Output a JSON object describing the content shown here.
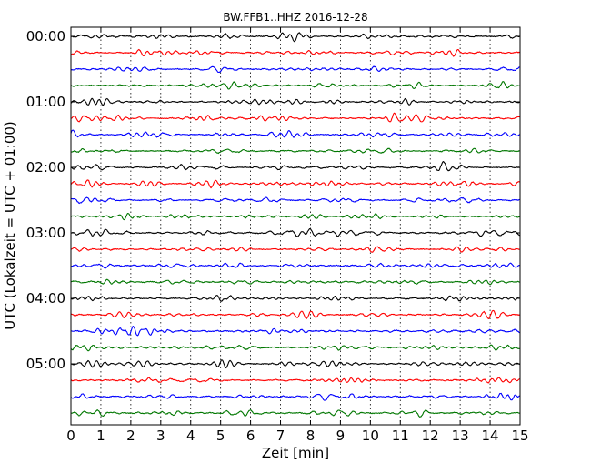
{
  "chart_data": {
    "type": "line",
    "title": "BW.FFB1..HHZ 2016-12-28",
    "xlabel": "Zeit  [min]",
    "ylabel": "UTC (Lokalzeit = UTC + 01:00)",
    "xlim": [
      0,
      15
    ],
    "xticks": [
      "0",
      "1",
      "2",
      "3",
      "4",
      "5",
      "6",
      "7",
      "8",
      "9",
      "10",
      "11",
      "12",
      "13",
      "14",
      "15"
    ],
    "yticks": [
      "00:00",
      "01:00",
      "02:00",
      "03:00",
      "04:00",
      "05:00"
    ],
    "trace_interval_minutes": 15,
    "trace_count": 24,
    "trace_colors": [
      "#000000",
      "#ff0000",
      "#0000ff",
      "#007700"
    ],
    "grid": {
      "x": true,
      "y": false
    }
  }
}
